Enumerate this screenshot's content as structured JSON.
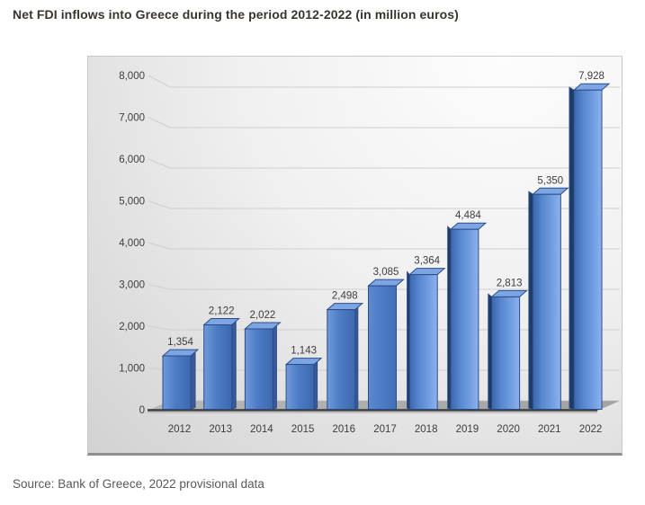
{
  "title": "Net FDI inflows into Greece during the period 2012-2022 (in million euros)",
  "source": "Source: Bank of Greece, 2022 provisional data",
  "chart_data": {
    "type": "bar",
    "style": "3d-column",
    "title": "Net FDI inflows into Greece during the period 2012-2022 (in million euros)",
    "categories": [
      "2012",
      "2013",
      "2014",
      "2015",
      "2016",
      "2017",
      "2018",
      "2019",
      "2020",
      "2021",
      "2022"
    ],
    "values": [
      1354,
      2122,
      2022,
      1143,
      2498,
      3085,
      3364,
      4484,
      2813,
      5350,
      7928
    ],
    "data_labels": [
      "1,354",
      "2,122",
      "2,022",
      "1,143",
      "2,498",
      "3,085",
      "3,364",
      "4,484",
      "2,813",
      "5,350",
      "7,928"
    ],
    "xlabel": "",
    "ylabel": "",
    "ylim": [
      0,
      8000
    ],
    "ytick_interval": 1000,
    "ytick_labels": [
      "0",
      "1,000",
      "2,000",
      "3,000",
      "4,000",
      "5,000",
      "6,000",
      "7,000",
      "8,000"
    ],
    "grid": true,
    "legend": "none",
    "colors": {
      "bar_front": "#4d7cc5",
      "bar_front_light": "#7aa4e6",
      "bar_front_dark": "#3a66ad",
      "bar_top": "#7da5e4",
      "bar_side_right": "#39599b",
      "bar_side_left": "#1f3a66",
      "bar_outline": "#2b4d87",
      "gridline": "#cfcfcf",
      "floor": "#ababab",
      "floor_edge": "#3f3f3f",
      "axis_text": "#3d3d3d",
      "label_text": "#3d3d3d"
    }
  }
}
